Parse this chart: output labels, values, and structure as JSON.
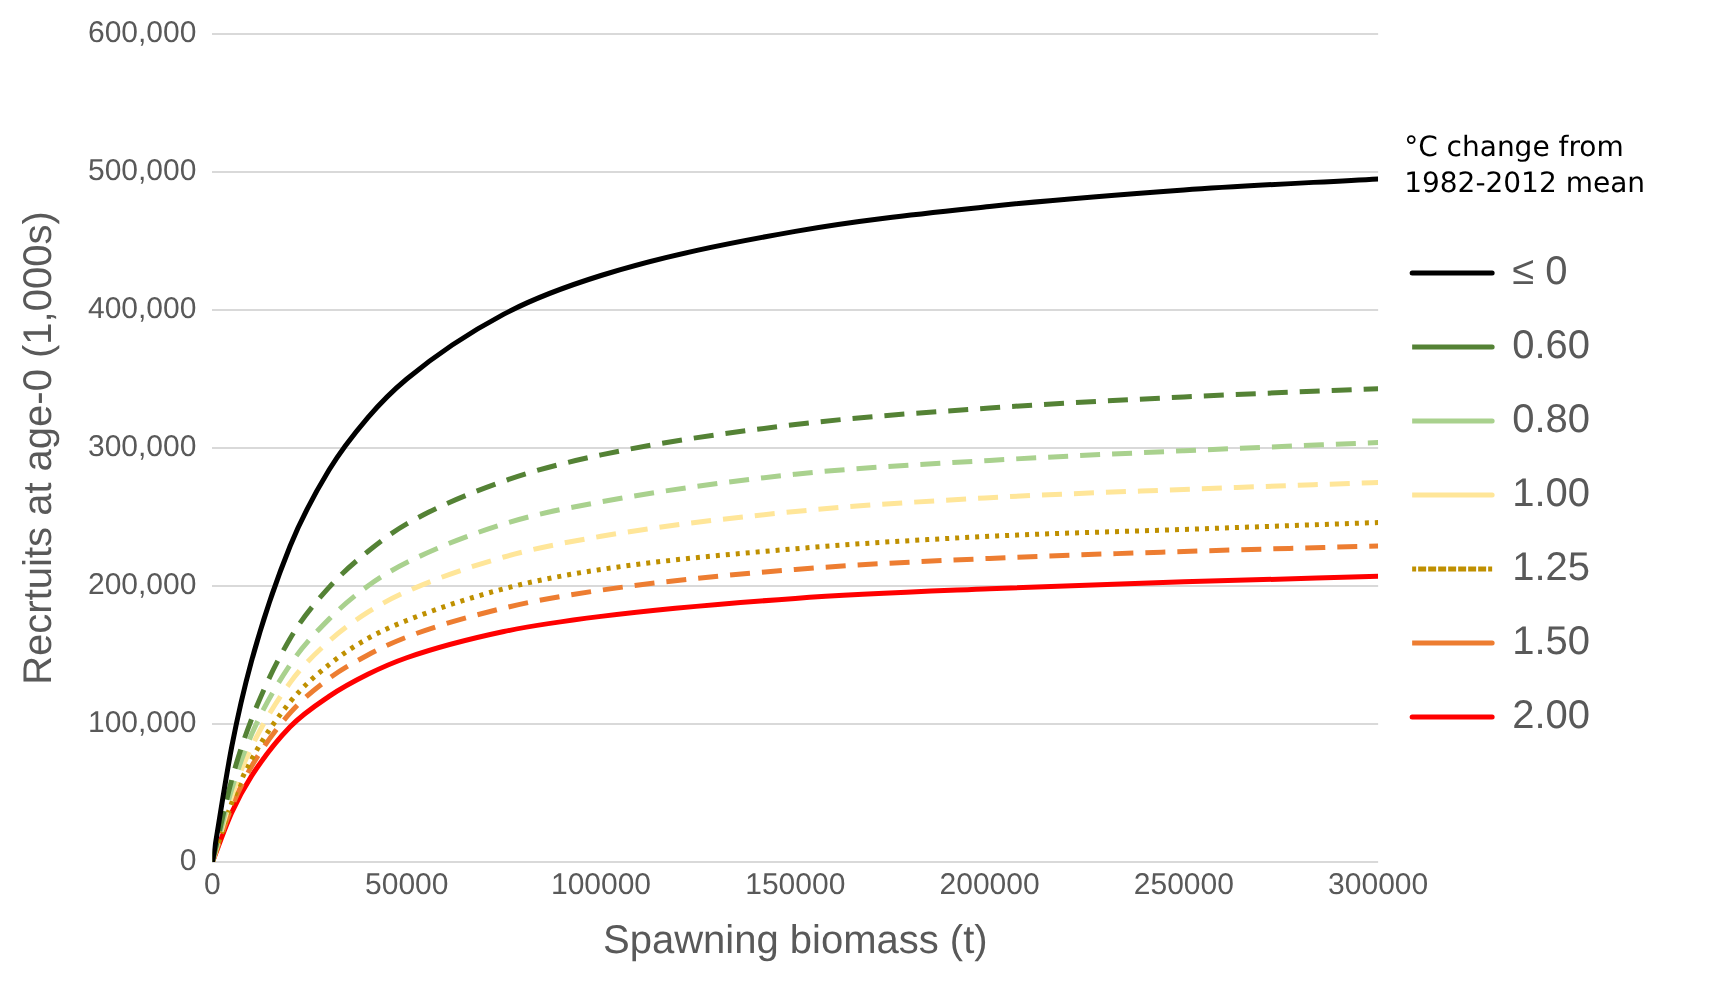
{
  "chart_data": {
    "type": "line",
    "xlabel": "Spawning biomass (t)",
    "ylabel": "Recrtuits at age-0 (1,000s)",
    "legend_title": "°C change from 1982-2012 mean",
    "x": [
      0,
      5000,
      10000,
      20000,
      30000,
      40000,
      50000,
      75000,
      100000,
      150000,
      200000,
      250000,
      300000
    ],
    "series": [
      {
        "name": "≤ 0",
        "color": "#000000",
        "line_style": "solid",
        "values": [
          0,
          84000,
          145000,
          229000,
          284000,
          322000,
          350000,
          397000,
          425000,
          457000,
          475000,
          487000,
          495000
        ]
      },
      {
        "name": "0.60",
        "color": "#548235",
        "line_style": "dashed",
        "values": [
          0,
          60000,
          103000,
          162000,
          199000,
          225000,
          245000,
          276000,
          295000,
          317000,
          329000,
          337000,
          343000
        ]
      },
      {
        "name": "0.80",
        "color": "#a9d18e",
        "line_style": "dashed",
        "values": [
          0,
          53000,
          92000,
          143000,
          176000,
          200000,
          217000,
          245000,
          261000,
          281000,
          291000,
          298000,
          304000
        ]
      },
      {
        "name": "1.00",
        "color": "#ffe699",
        "line_style": "dashed",
        "values": [
          0,
          48000,
          83000,
          130000,
          160000,
          181000,
          196000,
          221000,
          236000,
          254000,
          264000,
          270000,
          275000
        ]
      },
      {
        "name": "1.25",
        "color": "#bf9000",
        "line_style": "dotted",
        "values": [
          0,
          43000,
          74000,
          116000,
          143000,
          162000,
          175000,
          198000,
          212000,
          227000,
          236000,
          241000,
          246000
        ]
      },
      {
        "name": "1.50",
        "color": "#ed7d31",
        "line_style": "dashed",
        "values": [
          0,
          40000,
          69000,
          108000,
          133000,
          150000,
          163000,
          184000,
          197000,
          212000,
          220000,
          225000,
          229000
        ]
      },
      {
        "name": "2.00",
        "color": "#ff0000",
        "line_style": "solid",
        "values": [
          0,
          36000,
          62000,
          98000,
          120000,
          136000,
          148000,
          167000,
          178000,
          191000,
          198000,
          203000,
          207000
        ]
      }
    ],
    "xlim": [
      0,
      300000
    ],
    "xticks": [
      0,
      50000,
      100000,
      150000,
      200000,
      250000,
      300000
    ],
    "ylim": [
      0,
      600000
    ],
    "yticks": [
      {
        "value": 0,
        "label": "0"
      },
      {
        "value": 100000,
        "label": "100,000"
      },
      {
        "value": 200000,
        "label": "200,000"
      },
      {
        "value": 300000,
        "label": "300,000"
      },
      {
        "value": 400000,
        "label": "400,000"
      },
      {
        "value": 500000,
        "label": "500,000"
      },
      {
        "value": 600000,
        "label": "600,000"
      }
    ],
    "grid": "y",
    "legend": "right",
    "marker": "none"
  }
}
